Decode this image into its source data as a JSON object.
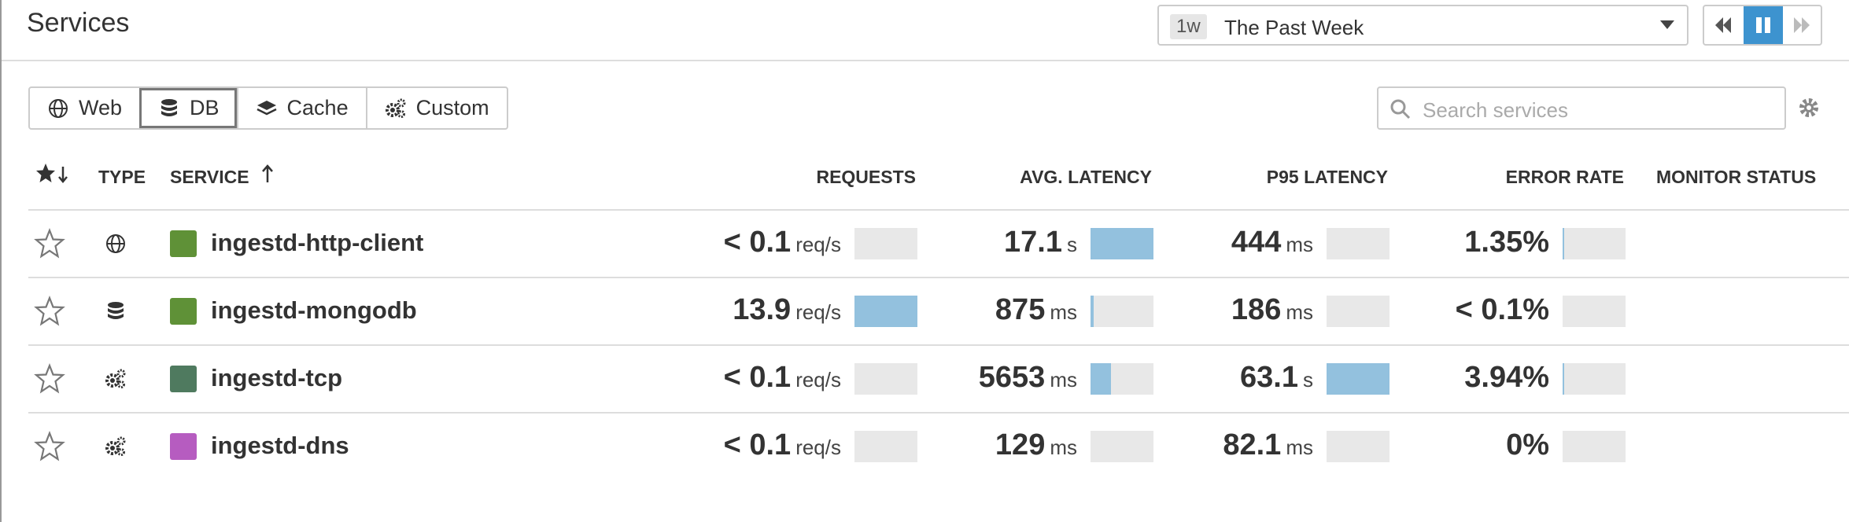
{
  "header": {
    "title": "Services",
    "time_badge": "1w",
    "time_label": "The Past Week"
  },
  "tabs": [
    "Web",
    "DB",
    "Cache",
    "Custom"
  ],
  "active_tab": 1,
  "search_placeholder": "Search services",
  "table": {
    "columns": [
      "TYPE",
      "SERVICE",
      "REQUESTS",
      "AVG. LATENCY",
      "P95 LATENCY",
      "ERROR RATE",
      "MONITOR STATUS"
    ],
    "rows": [
      {
        "icon": "globe",
        "color": "#5f9137",
        "service": "ingestd-http-client",
        "requests": {
          "value": "< 0.1",
          "unit": "req/s",
          "bar": 0
        },
        "avg_latency": {
          "value": "17.1",
          "unit": "s",
          "bar": 1
        },
        "p95_latency": {
          "value": "444",
          "unit": "ms",
          "bar": 0
        },
        "error_rate": {
          "value": "1.35%",
          "bar": 0.03
        }
      },
      {
        "icon": "db",
        "color": "#5f9137",
        "service": "ingestd-mongodb",
        "requests": {
          "value": "13.9",
          "unit": "req/s",
          "bar": 1
        },
        "avg_latency": {
          "value": "875",
          "unit": "ms",
          "bar": 0.05
        },
        "p95_latency": {
          "value": "186",
          "unit": "ms",
          "bar": 0
        },
        "error_rate": {
          "value": "< 0.1%",
          "bar": 0
        }
      },
      {
        "icon": "gears",
        "color": "#4f7a5f",
        "service": "ingestd-tcp",
        "requests": {
          "value": "< 0.1",
          "unit": "req/s",
          "bar": 0
        },
        "avg_latency": {
          "value": "5653",
          "unit": "ms",
          "bar": 0.33
        },
        "p95_latency": {
          "value": "63.1",
          "unit": "s",
          "bar": 1
        },
        "error_rate": {
          "value": "3.94%",
          "bar": 0.03
        }
      },
      {
        "icon": "gears",
        "color": "#b65cc0",
        "service": "ingestd-dns",
        "requests": {
          "value": "< 0.1",
          "unit": "req/s",
          "bar": 0
        },
        "avg_latency": {
          "value": "129",
          "unit": "ms",
          "bar": 0
        },
        "p95_latency": {
          "value": "82.1",
          "unit": "ms",
          "bar": 0
        },
        "error_rate": {
          "value": "0%",
          "bar": 0
        }
      }
    ]
  }
}
